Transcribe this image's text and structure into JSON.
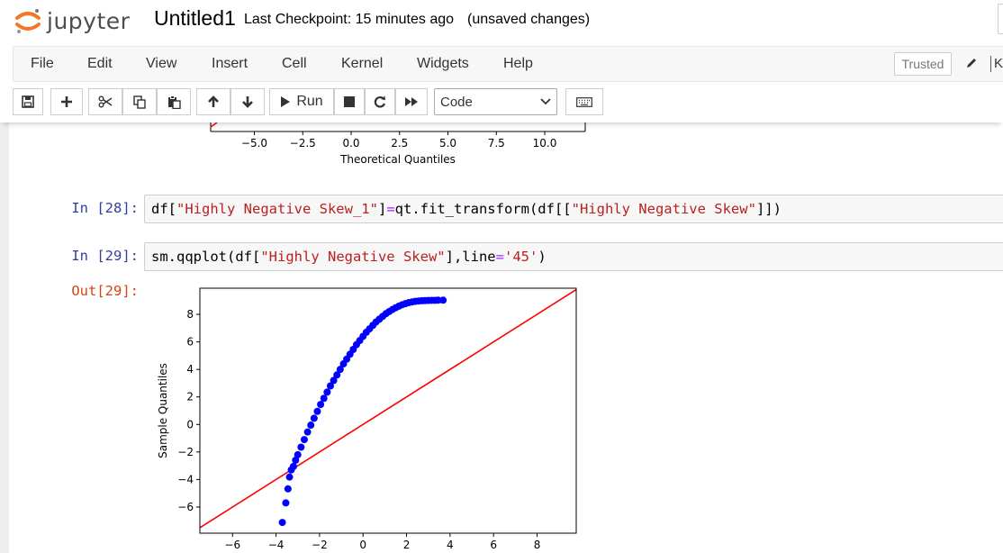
{
  "header": {
    "logo_text": "jupyter",
    "notebook_name": "Untitled1",
    "checkpoint": "Last Checkpoint: 15 minutes ago",
    "status": "(unsaved changes)"
  },
  "menubar": {
    "items": [
      "File",
      "Edit",
      "View",
      "Insert",
      "Cell",
      "Kernel",
      "Widgets",
      "Help"
    ],
    "trusted_label": "Trusted",
    "kernel_letter": "K"
  },
  "toolbar": {
    "run_label": "Run",
    "cell_type": "Code",
    "icons": [
      "save-icon",
      "plus-icon",
      "scissors-icon",
      "copy-icon",
      "paste-icon",
      "arrow-up-icon",
      "arrow-down-icon",
      "play-icon",
      "stop-icon",
      "restart-icon",
      "fast-forward-icon",
      "keyboard-icon"
    ]
  },
  "colors": {
    "prompt_in": "#303f9f",
    "prompt_out": "#d84315",
    "string": "#ba2121",
    "operator": "#aa22ff",
    "points": "#0000ff",
    "reference_line": "#ff0000"
  },
  "cells": {
    "prev_output": {
      "xlabel": "Theoretical Quantiles",
      "xticks": [
        "−5.0",
        "−2.5",
        "0.0",
        "2.5",
        "5.0",
        "7.5",
        "10.0"
      ]
    },
    "cell28": {
      "prompt": "In [28]:",
      "code": {
        "a": "df[",
        "s1": "\"Highly Negative Skew_1\"",
        "b": "]",
        "eq": "=",
        "c": "qt.fit_transform(df[[",
        "s2": "\"Highly Negative Skew\"",
        "d": "]])"
      }
    },
    "cell29": {
      "prompt": "In [29]:",
      "out_prompt": "Out[29]:",
      "code": {
        "a": "sm.qqplot(df[",
        "s1": "\"Highly Negative Skew\"",
        "b": "],line",
        "eq": "=",
        "s2": "'45'",
        "c": ")"
      }
    }
  },
  "chart_data": {
    "type": "scatter",
    "xlabel": "",
    "ylabel": "Sample Quantiles",
    "xlim": [
      -7.5,
      9.8
    ],
    "ylim": [
      -7.9,
      9.9
    ],
    "xticks": [
      "−6",
      "−4",
      "−2",
      "0",
      "2",
      "4",
      "6",
      "8"
    ],
    "yticks": [
      "−6",
      "−4",
      "−2",
      "0",
      "2",
      "4",
      "6",
      "8"
    ],
    "reference_line": "45-degree",
    "series": [
      {
        "points": [
          [
            -3.71,
            -7.12
          ],
          [
            -3.55,
            -5.7
          ],
          [
            -3.45,
            -4.68
          ],
          [
            -3.38,
            -3.82
          ],
          [
            -3.3,
            -3.3
          ],
          [
            -3.2,
            -3.05
          ],
          [
            -3.1,
            -2.6
          ],
          [
            -3.0,
            -2.2
          ],
          [
            -2.85,
            -1.65
          ],
          [
            -2.7,
            -1.1
          ],
          [
            -2.55,
            -0.55
          ],
          [
            -2.4,
            -0.05
          ],
          [
            -2.25,
            0.45
          ],
          [
            -2.1,
            0.95
          ],
          [
            -1.95,
            1.45
          ],
          [
            -1.8,
            1.9
          ],
          [
            -1.65,
            2.35
          ],
          [
            -1.5,
            2.8
          ],
          [
            -1.35,
            3.2
          ],
          [
            -1.2,
            3.6
          ],
          [
            -1.05,
            4.0
          ],
          [
            -0.9,
            4.4
          ],
          [
            -0.75,
            4.75
          ],
          [
            -0.6,
            5.1
          ],
          [
            -0.45,
            5.45
          ],
          [
            -0.3,
            5.8
          ],
          [
            -0.15,
            6.1
          ],
          [
            0.0,
            6.4
          ],
          [
            0.15,
            6.7
          ],
          [
            0.3,
            6.95
          ],
          [
            0.45,
            7.2
          ],
          [
            0.6,
            7.45
          ],
          [
            0.75,
            7.65
          ],
          [
            0.9,
            7.85
          ],
          [
            1.05,
            8.05
          ],
          [
            1.2,
            8.2
          ],
          [
            1.35,
            8.35
          ],
          [
            1.5,
            8.48
          ],
          [
            1.65,
            8.6
          ],
          [
            1.8,
            8.7
          ],
          [
            1.95,
            8.78
          ],
          [
            2.1,
            8.85
          ],
          [
            2.25,
            8.9
          ],
          [
            2.4,
            8.94
          ],
          [
            2.55,
            8.97
          ],
          [
            2.7,
            8.99
          ],
          [
            2.85,
            9.0
          ],
          [
            3.0,
            9.01
          ],
          [
            3.15,
            9.02
          ],
          [
            3.3,
            9.02
          ],
          [
            3.45,
            9.03
          ],
          [
            3.68,
            9.03
          ]
        ]
      }
    ]
  }
}
